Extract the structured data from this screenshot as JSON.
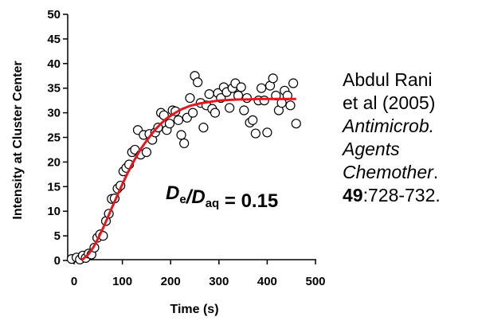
{
  "chart_data": {
    "type": "scatter",
    "xlabel": "Time (s)",
    "ylabel": "Intensity at Cluster Center",
    "xlim": [
      0,
      500
    ],
    "ylim": [
      0,
      50
    ],
    "x_ticks": [
      0,
      100,
      200,
      300,
      400,
      500
    ],
    "y_ticks": [
      0,
      5,
      10,
      15,
      20,
      25,
      30,
      35,
      40,
      45,
      50
    ],
    "grid": false,
    "legend": "none",
    "series": [
      {
        "marker": "open-circle",
        "color": "#000000",
        "points": [
          [
            -5,
            0.3
          ],
          [
            5,
            0.6
          ],
          [
            12,
            0.2
          ],
          [
            18,
            1.0
          ],
          [
            24,
            0.5
          ],
          [
            30,
            1.4
          ],
          [
            36,
            1.2
          ],
          [
            42,
            2.6
          ],
          [
            48,
            4.6
          ],
          [
            54,
            5.3
          ],
          [
            60,
            5.0
          ],
          [
            66,
            8.0
          ],
          [
            72,
            9.5
          ],
          [
            78,
            12.5
          ],
          [
            84,
            12.6
          ],
          [
            90,
            14.6
          ],
          [
            96,
            15.2
          ],
          [
            102,
            18.1
          ],
          [
            108,
            18.8
          ],
          [
            114,
            19.5
          ],
          [
            120,
            22.0
          ],
          [
            126,
            22.5
          ],
          [
            132,
            26.5
          ],
          [
            138,
            21.5
          ],
          [
            144,
            25.5
          ],
          [
            150,
            22.0
          ],
          [
            156,
            25.7
          ],
          [
            162,
            24.5
          ],
          [
            168,
            26.0
          ],
          [
            174,
            27.0
          ],
          [
            180,
            30.0
          ],
          [
            186,
            29.5
          ],
          [
            192,
            26.5
          ],
          [
            198,
            27.8
          ],
          [
            204,
            30.5
          ],
          [
            210,
            30.3
          ],
          [
            216,
            28.5
          ],
          [
            222,
            25.5
          ],
          [
            228,
            23.8
          ],
          [
            234,
            29.0
          ],
          [
            240,
            33.0
          ],
          [
            246,
            30.0
          ],
          [
            250,
            37.5
          ],
          [
            256,
            36.2
          ],
          [
            262,
            32.0
          ],
          [
            268,
            27.0
          ],
          [
            274,
            31.5
          ],
          [
            280,
            33.8
          ],
          [
            286,
            30.8
          ],
          [
            292,
            30.0
          ],
          [
            298,
            34.0
          ],
          [
            304,
            33.0
          ],
          [
            310,
            35.2
          ],
          [
            316,
            34.2
          ],
          [
            322,
            31.0
          ],
          [
            328,
            35.0
          ],
          [
            334,
            36.0
          ],
          [
            340,
            33.5
          ],
          [
            346,
            35.2
          ],
          [
            352,
            30.5
          ],
          [
            358,
            33.0
          ],
          [
            364,
            28.0
          ],
          [
            370,
            28.5
          ],
          [
            376,
            25.8
          ],
          [
            382,
            32.5
          ],
          [
            388,
            35.0
          ],
          [
            394,
            32.5
          ],
          [
            400,
            26.0
          ],
          [
            406,
            35.5
          ],
          [
            412,
            37.0
          ],
          [
            418,
            33.5
          ],
          [
            424,
            30.5
          ],
          [
            430,
            32.0
          ],
          [
            436,
            34.5
          ],
          [
            442,
            33.5
          ],
          [
            448,
            31.5
          ],
          [
            454,
            36.0
          ],
          [
            460,
            27.8
          ]
        ]
      },
      {
        "type": "line",
        "color": "#e8141c",
        "x": [
          15,
          20,
          30,
          40,
          50,
          60,
          70,
          80,
          90,
          100,
          110,
          120,
          130,
          140,
          150,
          160,
          170,
          180,
          190,
          200,
          220,
          240,
          260,
          280,
          300,
          320,
          340,
          360,
          380,
          400,
          420,
          440,
          460
        ],
        "y": [
          0.0,
          0.4,
          1.3,
          2.7,
          4.5,
          6.6,
          8.8,
          11.1,
          13.3,
          15.5,
          17.6,
          19.5,
          21.3,
          22.9,
          24.3,
          25.6,
          26.8,
          27.8,
          28.7,
          29.4,
          30.6,
          31.4,
          31.9,
          32.2,
          32.5,
          32.6,
          32.7,
          32.7,
          32.8,
          32.8,
          32.8,
          32.8,
          32.8
        ]
      }
    ],
    "annotation": {
      "parts": [
        {
          "text": "D",
          "italic": true
        },
        {
          "text": "e",
          "sub": true
        },
        {
          "text": "/",
          "italic": true
        },
        {
          "text": "D",
          "italic": true
        },
        {
          "text": "aq",
          "sub": true
        },
        {
          "text": " = 0.15"
        }
      ]
    }
  },
  "reference": {
    "line1": "Abdul Rani",
    "line2": "et al (2005)",
    "line3": "Antimicrob.",
    "line4": "Agents",
    "line5_italic": "Chemother",
    "line5_end": ".",
    "line6_bold": "49",
    "line6_rest": ":728-732."
  }
}
